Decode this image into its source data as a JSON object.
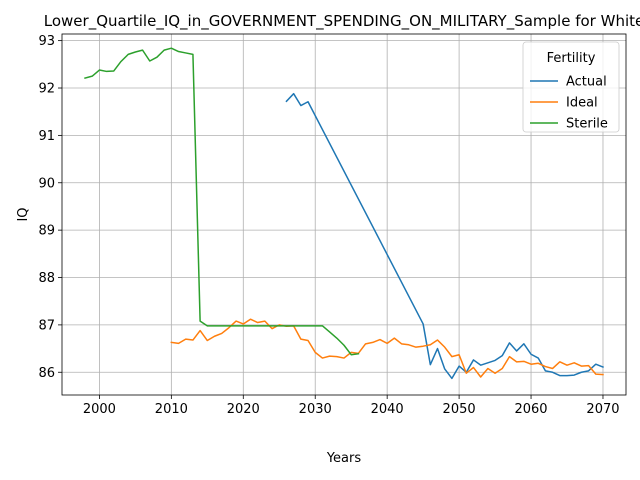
{
  "chart_data": {
    "type": "line",
    "title": "Lower_Quartile_IQ_in_GOVERNMENT_SPENDING_ON_MILITARY_Sample for White",
    "xlabel": "Years",
    "ylabel": "IQ",
    "xlim": [
      1994.8,
      2073.2
    ],
    "ylim": [
      85.52,
      93.14
    ],
    "xticks": [
      2000,
      2010,
      2020,
      2030,
      2040,
      2050,
      2060,
      2070
    ],
    "yticks": [
      86,
      87,
      88,
      89,
      90,
      91,
      92,
      93
    ],
    "grid": true,
    "legend": {
      "title": "Fertility",
      "placement": "top-right"
    },
    "series": [
      {
        "name": "Actual",
        "color": "#1f77b4",
        "x": [
          2026,
          2027,
          2028,
          2029,
          2045,
          2046,
          2047,
          2048,
          2049,
          2050,
          2051,
          2052,
          2053,
          2054,
          2055,
          2056,
          2057,
          2058,
          2059,
          2060,
          2061,
          2062,
          2063,
          2064,
          2065,
          2066,
          2067,
          2068,
          2069,
          2070
        ],
        "y": [
          91.72,
          91.88,
          91.63,
          91.71,
          87.02,
          86.16,
          86.5,
          86.07,
          85.87,
          86.13,
          86.0,
          86.26,
          86.15,
          86.2,
          86.25,
          86.35,
          86.62,
          86.45,
          86.6,
          86.38,
          86.3,
          86.03,
          86.0,
          85.93,
          85.93,
          85.94,
          86.0,
          86.03,
          86.17,
          86.11
        ]
      },
      {
        "name": "Ideal",
        "color": "#ff7f0e",
        "x": [
          2010,
          2011,
          2012,
          2013,
          2014,
          2015,
          2016,
          2017,
          2018,
          2019,
          2020,
          2021,
          2022,
          2023,
          2024,
          2025,
          2026,
          2027,
          2028,
          2029,
          2030,
          2031,
          2032,
          2033,
          2034,
          2035,
          2036,
          2037,
          2038,
          2039,
          2040,
          2041,
          2042,
          2043,
          2044,
          2045,
          2046,
          2047,
          2048,
          2049,
          2050,
          2051,
          2052,
          2053,
          2054,
          2055,
          2056,
          2057,
          2058,
          2059,
          2060,
          2061,
          2062,
          2063,
          2064,
          2065,
          2066,
          2067,
          2068,
          2069,
          2070
        ],
        "y": [
          86.63,
          86.61,
          86.7,
          86.68,
          86.88,
          86.67,
          86.76,
          86.82,
          86.94,
          87.08,
          87.02,
          87.12,
          87.05,
          87.08,
          86.92,
          87.0,
          86.97,
          86.98,
          86.7,
          86.67,
          86.42,
          86.3,
          86.34,
          86.33,
          86.3,
          86.42,
          86.4,
          86.6,
          86.63,
          86.69,
          86.61,
          86.72,
          86.6,
          86.58,
          86.53,
          86.55,
          86.58,
          86.68,
          86.53,
          86.33,
          86.37,
          85.98,
          86.1,
          85.9,
          86.08,
          85.98,
          86.08,
          86.33,
          86.22,
          86.23,
          86.17,
          86.19,
          86.12,
          86.08,
          86.22,
          86.15,
          86.2,
          86.13,
          86.14,
          85.96,
          85.95
        ]
      },
      {
        "name": "Sterile",
        "color": "#2ca02c",
        "x": [
          1998,
          1999,
          2000,
          2001,
          2002,
          2003,
          2004,
          2005,
          2006,
          2007,
          2008,
          2009,
          2010,
          2011,
          2012,
          2013,
          2014,
          2015,
          2016,
          2017,
          2018,
          2019,
          2020,
          2021,
          2022,
          2023,
          2024,
          2025,
          2026,
          2027,
          2028,
          2029,
          2030,
          2031,
          2032,
          2033,
          2034,
          2035,
          2036
        ],
        "y": [
          92.21,
          92.25,
          92.38,
          92.35,
          92.36,
          92.56,
          92.71,
          92.76,
          92.8,
          92.57,
          92.65,
          92.8,
          92.84,
          92.77,
          92.74,
          92.71,
          87.08,
          86.98,
          86.98,
          86.98,
          86.98,
          86.98,
          86.98,
          86.98,
          86.98,
          86.98,
          86.98,
          86.98,
          86.98,
          86.98,
          86.98,
          86.98,
          86.98,
          86.98,
          86.85,
          86.72,
          86.57,
          86.37,
          86.39
        ]
      }
    ]
  }
}
